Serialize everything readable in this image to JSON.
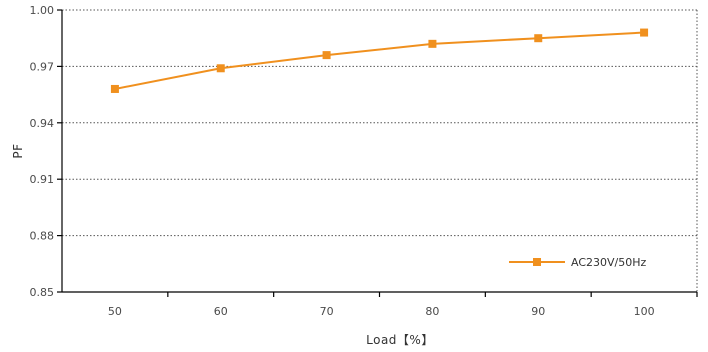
{
  "chart_data": {
    "type": "line",
    "title": "",
    "xlabel": "Load【%】",
    "ylabel": "PF",
    "x": [
      50,
      60,
      70,
      80,
      90,
      100
    ],
    "x_ticks": [
      "50",
      "60",
      "70",
      "80",
      "90",
      "100"
    ],
    "y_ticks": [
      "1.00",
      "0.97",
      "0.94",
      "0.91",
      "0.88",
      "0.85"
    ],
    "ylim": [
      0.85,
      1.0
    ],
    "grid": "horizontal-dotted",
    "legend_position": "bottom-right",
    "series": [
      {
        "name": "AC230V/50Hz",
        "color": "#f0901e",
        "marker": "square",
        "values": [
          0.958,
          0.969,
          0.976,
          0.982,
          0.985,
          0.988
        ]
      }
    ]
  }
}
